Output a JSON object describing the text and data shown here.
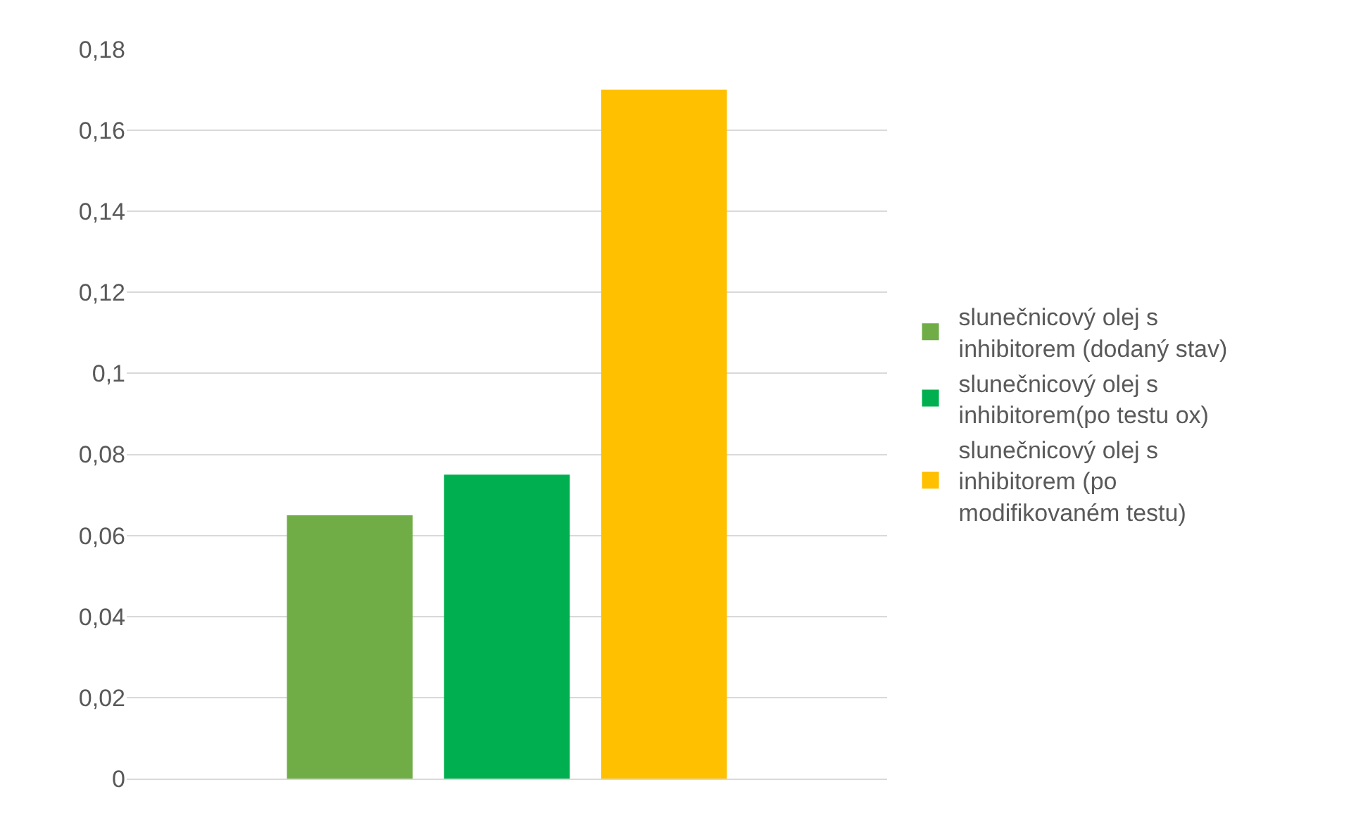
{
  "chart_data": {
    "type": "bar",
    "categories": [
      null
    ],
    "series": [
      {
        "name": "slunečnicový olej s inhibitorem (dodaný stav)",
        "color": "#70ad47",
        "values": [
          0.065
        ]
      },
      {
        "name": "slunečnicový olej s inhibitorem(po testu ox)",
        "color": "#00b050",
        "values": [
          0.075
        ]
      },
      {
        "name": "slunečnicový olej s inhibitorem (po modifikovaném testu)",
        "color": "#ffc000",
        "values": [
          0.17
        ]
      }
    ],
    "ylim": [
      0,
      0.18
    ],
    "yticks": [
      0,
      {
        "value": 0.02,
        "label": "0,02"
      },
      {
        "value": 0.04,
        "label": "0,04"
      },
      {
        "value": 0.06,
        "label": "0,06"
      },
      {
        "value": 0.08,
        "label": "0,08"
      },
      {
        "value": 0.1,
        "label": "0,1"
      },
      {
        "value": 0.12,
        "label": "0,12"
      },
      {
        "value": 0.14,
        "label": "0,14"
      },
      {
        "value": 0.16,
        "label": "0,16"
      },
      {
        "value": 0.18,
        "label": "0,18"
      }
    ],
    "grid": "y",
    "legend": "right"
  }
}
